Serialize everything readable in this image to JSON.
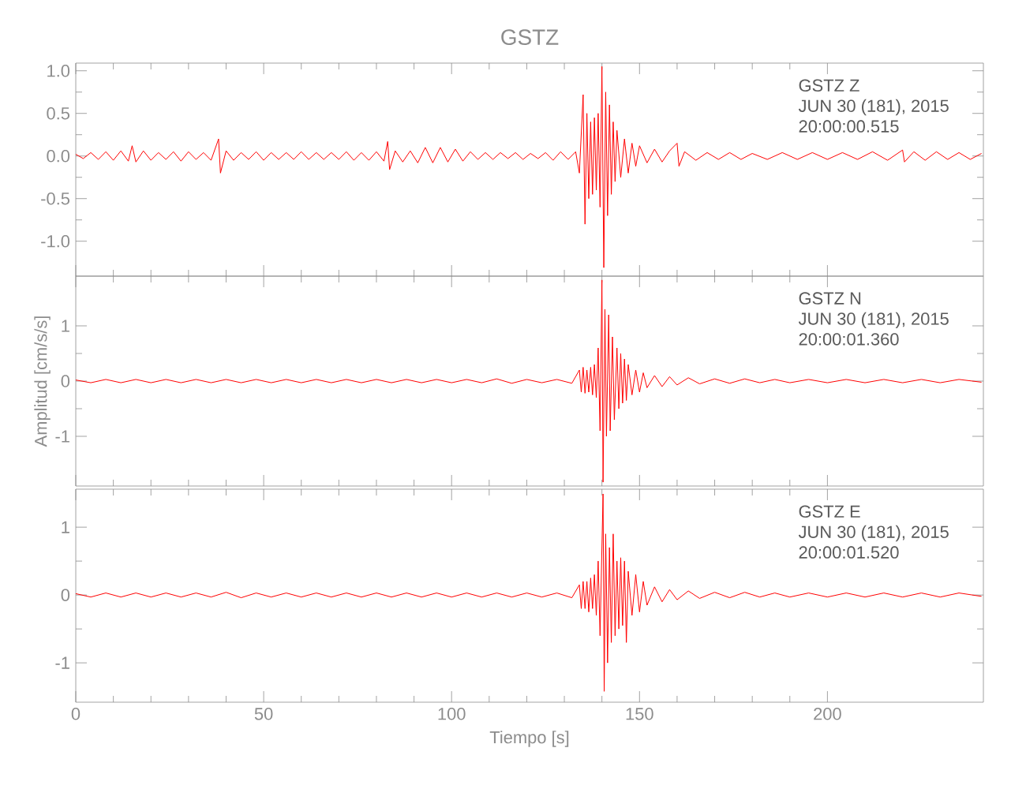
{
  "chart_data": [
    {
      "type": "line",
      "title": "GSTZ",
      "color": "#ff0000",
      "tick_labels": "y",
      "annotations": [
        "GSTZ   Z",
        "JUN 30 (181), 2015",
        "20:00:00.515"
      ],
      "xlim": [
        0,
        241.5
      ],
      "xticks": [
        0,
        50,
        100,
        150,
        200
      ],
      "ylim": [
        -1.41,
        1.09
      ],
      "yticks": [
        {
          "value": -1.0,
          "label": "-1.0"
        },
        {
          "value": -0.5,
          "label": "-0.5"
        },
        {
          "value": 0.0,
          "label": "0.0"
        },
        {
          "value": 0.5,
          "label": "0.5"
        },
        {
          "value": 1.0,
          "label": "1.0"
        }
      ],
      "x": [
        0,
        2,
        4,
        6,
        8,
        10,
        12,
        14,
        15,
        16,
        18,
        20,
        22,
        24,
        26,
        28,
        30,
        32,
        34,
        36,
        38,
        38.5,
        40,
        42,
        44,
        46,
        48,
        50,
        52,
        54,
        56,
        58,
        60,
        62,
        64,
        66,
        68,
        70,
        72,
        74,
        76,
        78,
        80,
        82,
        83,
        83.5,
        85,
        87,
        89,
        91,
        93,
        95,
        97,
        99,
        101,
        103,
        105,
        107,
        109,
        111,
        113,
        115,
        117,
        119,
        121,
        123,
        125,
        127,
        129,
        131,
        133,
        134,
        135,
        135.5,
        136,
        136.5,
        137,
        137.5,
        138,
        138.5,
        139,
        139.5,
        140,
        140.5,
        141,
        141.5,
        142,
        142.5,
        143,
        143.5,
        144,
        145,
        146,
        147,
        148,
        149,
        150,
        152,
        154,
        156,
        158,
        160,
        160.5,
        162,
        165,
        168,
        171,
        174,
        177,
        180,
        184,
        188,
        192,
        196,
        200,
        204,
        208,
        212,
        216,
        220,
        220.5,
        223,
        226,
        229,
        232,
        235,
        238,
        241
      ],
      "values": [
        0.02,
        -0.03,
        0.04,
        -0.04,
        0.05,
        -0.05,
        0.06,
        -0.06,
        0.12,
        -0.07,
        0.06,
        -0.05,
        0.04,
        -0.04,
        0.05,
        -0.06,
        0.05,
        -0.04,
        0.04,
        -0.05,
        0.2,
        -0.2,
        0.06,
        -0.05,
        0.04,
        -0.04,
        0.05,
        -0.05,
        0.04,
        -0.04,
        0.04,
        -0.04,
        0.05,
        -0.04,
        0.04,
        -0.04,
        0.04,
        -0.04,
        0.05,
        -0.05,
        0.04,
        -0.05,
        0.05,
        -0.06,
        0.17,
        -0.16,
        0.06,
        -0.07,
        0.06,
        -0.08,
        0.1,
        -0.08,
        0.1,
        -0.07,
        0.08,
        -0.06,
        0.05,
        -0.04,
        0.04,
        -0.04,
        0.04,
        -0.03,
        0.04,
        -0.04,
        0.03,
        -0.03,
        0.04,
        -0.05,
        0.05,
        -0.04,
        0.05,
        -0.2,
        0.72,
        -0.8,
        0.5,
        -0.5,
        0.4,
        -0.45,
        0.45,
        -0.4,
        0.5,
        -0.6,
        1.05,
        -1.31,
        0.75,
        -0.7,
        0.6,
        -0.45,
        0.4,
        -0.3,
        0.3,
        -0.25,
        0.2,
        -0.2,
        0.15,
        -0.12,
        0.12,
        -0.08,
        0.08,
        -0.07,
        0.06,
        0.15,
        -0.12,
        0.05,
        -0.05,
        0.04,
        -0.04,
        0.04,
        -0.04,
        0.03,
        -0.04,
        0.04,
        -0.04,
        0.04,
        -0.04,
        0.04,
        -0.04,
        0.05,
        -0.05,
        0.07,
        -0.07,
        0.05,
        -0.05,
        0.05,
        -0.04,
        0.04,
        -0.04,
        0.03
      ]
    },
    {
      "type": "line",
      "ylabel": "Amplitud [cm/s/s]",
      "color": "#ff0000",
      "tick_labels": "y",
      "annotations": [
        "GSTZ   N",
        "JUN 30 (181), 2015",
        "20:00:01.360"
      ],
      "xlim": [
        0,
        241.5
      ],
      "xticks": [
        0,
        50,
        100,
        150,
        200
      ],
      "ylim": [
        -1.9,
        1.9
      ],
      "yticks": [
        -1,
        0,
        1
      ],
      "x": [
        0,
        4,
        8,
        12,
        16,
        20,
        24,
        28,
        32,
        36,
        40,
        44,
        48,
        52,
        56,
        60,
        64,
        68,
        72,
        76,
        80,
        84,
        88,
        92,
        96,
        100,
        104,
        108,
        112,
        116,
        120,
        124,
        128,
        132,
        134,
        134.5,
        135,
        135.5,
        136,
        136.5,
        137,
        137.5,
        138,
        138.5,
        139,
        139.5,
        140,
        140.3,
        140.8,
        141.2,
        141.8,
        142.2,
        142.8,
        143.3,
        144,
        144.5,
        145,
        145.5,
        146,
        146.5,
        147,
        148,
        149,
        150,
        151,
        152,
        154,
        156,
        158,
        160,
        163,
        166,
        170,
        174,
        178,
        182,
        186,
        190,
        195,
        200,
        205,
        210,
        215,
        220,
        225,
        230,
        235,
        241
      ],
      "values": [
        0.02,
        -0.03,
        0.03,
        -0.03,
        0.03,
        -0.03,
        0.03,
        -0.03,
        0.03,
        -0.03,
        0.03,
        -0.03,
        0.03,
        -0.03,
        0.03,
        -0.03,
        0.03,
        -0.03,
        0.03,
        -0.03,
        0.03,
        -0.03,
        0.03,
        -0.03,
        0.03,
        -0.03,
        0.03,
        -0.03,
        0.04,
        -0.04,
        0.03,
        -0.03,
        0.03,
        -0.04,
        0.2,
        -0.2,
        0.25,
        -0.22,
        0.2,
        -0.2,
        0.25,
        -0.25,
        0.3,
        -0.3,
        0.6,
        -0.9,
        1.83,
        -1.83,
        1.3,
        -1.0,
        1.2,
        -0.9,
        0.8,
        -0.7,
        0.6,
        -0.5,
        0.5,
        -0.4,
        0.4,
        -0.35,
        0.3,
        -0.25,
        0.2,
        -0.2,
        0.15,
        -0.12,
        0.1,
        -0.1,
        0.08,
        -0.07,
        0.06,
        -0.05,
        0.04,
        -0.04,
        0.04,
        -0.03,
        0.03,
        -0.03,
        0.03,
        -0.03,
        0.03,
        -0.03,
        0.03,
        -0.03,
        0.03,
        -0.03,
        0.03,
        -0.02
      ]
    },
    {
      "type": "line",
      "xlabel": "Tiempo [s]",
      "color": "#ff0000",
      "annotations": [
        "GSTZ   E",
        "JUN 30 (181), 2015",
        "20:00:01.520"
      ],
      "xlim": [
        0,
        241.5
      ],
      "xticks": [
        0,
        50,
        100,
        150,
        200
      ],
      "ylim": [
        -1.58,
        1.56
      ],
      "yticks": [
        -1,
        0,
        1
      ],
      "x": [
        0,
        4,
        8,
        12,
        16,
        20,
        24,
        28,
        32,
        36,
        40,
        44,
        48,
        52,
        56,
        60,
        64,
        68,
        72,
        76,
        80,
        84,
        88,
        92,
        96,
        100,
        104,
        108,
        112,
        116,
        120,
        124,
        128,
        132,
        134,
        134.5,
        135,
        135.5,
        136,
        136.5,
        137,
        137.5,
        138,
        138.5,
        139,
        139.5,
        140.3,
        140.6,
        141,
        141.5,
        142,
        142.5,
        143,
        143.5,
        144,
        144.5,
        145,
        145.5,
        146,
        146.5,
        147,
        148,
        149,
        150,
        151,
        152,
        154,
        156,
        158,
        160,
        163,
        166,
        170,
        174,
        178,
        182,
        186,
        190,
        195,
        200,
        205,
        210,
        215,
        220,
        225,
        230,
        235,
        241
      ],
      "values": [
        0.02,
        -0.03,
        0.03,
        -0.03,
        0.03,
        -0.03,
        0.03,
        -0.03,
        0.03,
        -0.03,
        0.04,
        -0.04,
        0.03,
        -0.03,
        0.03,
        -0.03,
        0.03,
        -0.03,
        0.03,
        -0.03,
        0.03,
        -0.03,
        0.03,
        -0.03,
        0.03,
        -0.03,
        0.03,
        -0.03,
        0.03,
        -0.03,
        0.03,
        -0.03,
        0.03,
        -0.04,
        0.15,
        -0.2,
        0.2,
        -0.2,
        0.2,
        -0.25,
        0.25,
        -0.2,
        0.3,
        -0.3,
        0.5,
        -0.6,
        1.49,
        -1.42,
        0.9,
        -1.0,
        0.7,
        -0.7,
        0.9,
        -0.6,
        0.5,
        -0.5,
        0.55,
        -0.45,
        0.5,
        -0.7,
        0.35,
        -0.3,
        0.3,
        -0.25,
        0.2,
        -0.15,
        0.12,
        -0.1,
        0.08,
        -0.07,
        0.06,
        -0.05,
        0.04,
        -0.04,
        0.04,
        -0.03,
        0.03,
        -0.03,
        0.03,
        -0.03,
        0.03,
        -0.03,
        0.03,
        -0.03,
        0.03,
        -0.03,
        0.03,
        -0.02
      ]
    }
  ]
}
